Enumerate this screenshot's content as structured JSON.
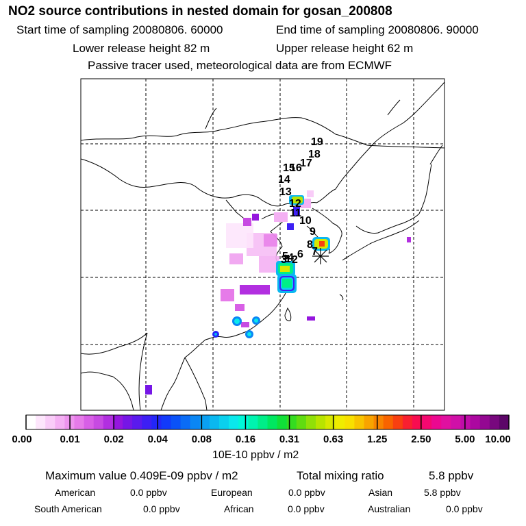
{
  "header": {
    "title": "NO2 source contributions in nested domain for gosan_200808",
    "start_time": "Start time of sampling 20080806. 60000",
    "end_time": "End time of sampling 20080806. 90000",
    "lower_release": "Lower release height   82 m",
    "upper_release": "Upper release height   62 m",
    "note": "Passive tracer used, meteorological data are from ECMWF"
  },
  "track_labels": [
    "19",
    "18",
    "17",
    "16",
    "15",
    "14",
    "13",
    "12",
    "11",
    "10",
    "9",
    "8",
    "7",
    "6",
    "5",
    "4",
    "3",
    "2",
    "1"
  ],
  "colorbar": {
    "colors": [
      "#ffffff",
      "#fde6fc",
      "#f9ccf8",
      "#f4b0f3",
      "#ee94ee",
      "#e67be9",
      "#d85fe6",
      "#c74ae2",
      "#b22fe0",
      "#9516de",
      "#7616e6",
      "#5a1aee",
      "#3d1ff4",
      "#2326f8",
      "#123afa",
      "#0a52f8",
      "#0a6cf6",
      "#0a86f4",
      "#0aa0f2",
      "#0ab8f0",
      "#0ad0ee",
      "#0ae8ec",
      "#00f8d8",
      "#00f4b0",
      "#00ee88",
      "#00e860",
      "#10e038",
      "#34dc20",
      "#60dc10",
      "#90e008",
      "#b8e400",
      "#d8e800",
      "#f0ec00",
      "#f8e000",
      "#f8c400",
      "#f8a400",
      "#f88400",
      "#f86400",
      "#f84010",
      "#f82030",
      "#f80c50",
      "#f40870",
      "#ec0890",
      "#e010a0",
      "#d010a8",
      "#c00ca8",
      "#ac08a0",
      "#940892",
      "#78087e",
      "#5c0668"
    ],
    "labels": [
      "0.00",
      "0.01",
      "0.02",
      "0.04",
      "0.08",
      "0.16",
      "0.31",
      "0.63",
      "1.25",
      "2.50",
      "5.00",
      "10.00"
    ],
    "units": "10E-10 ppbv / m2"
  },
  "summary": {
    "maximum": "Maximum value  0.409E-09 ppbv / m2",
    "total_label": "Total mixing ratio",
    "total_value": "5.8 ppbv",
    "regions": [
      {
        "name": "American",
        "value": "0.0 ppbv"
      },
      {
        "name": "European",
        "value": "0.0 ppbv"
      },
      {
        "name": "Asian",
        "value": "5.8 ppbv"
      },
      {
        "name": "South American",
        "value": "0.0 ppbv"
      },
      {
        "name": "African",
        "value": "0.0 ppbv"
      },
      {
        "name": "Australian",
        "value": "0.0 ppbv"
      }
    ]
  }
}
